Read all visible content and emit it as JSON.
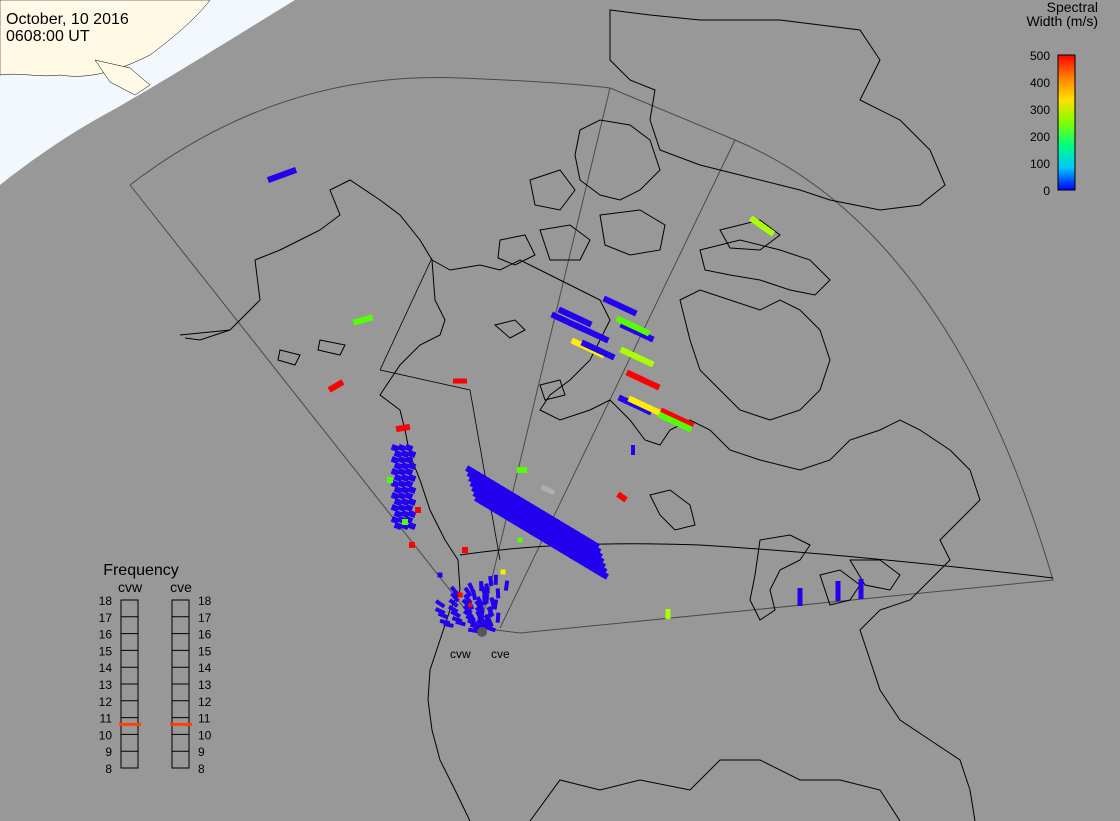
{
  "header": {
    "date": "October, 10 2016",
    "time": "0608:00 UT"
  },
  "colorbar": {
    "title_line1": "Spectral",
    "title_line2": "Width (m/s)",
    "ticks": [
      "0",
      "100",
      "200",
      "300",
      "400",
      "500"
    ],
    "colors": [
      "#0000ff",
      "#00c8ff",
      "#00ff80",
      "#80ff00",
      "#ffe000",
      "#ff8000",
      "#ff0000"
    ]
  },
  "frequency_panel": {
    "title": "Frequency",
    "left_label": "cvw",
    "right_label": "cve",
    "scale": [
      "18",
      "17",
      "16",
      "15",
      "14",
      "13",
      "12",
      "11",
      "10",
      "9",
      "8"
    ],
    "cvw_marker_mhz": 10.6,
    "cve_marker_mhz": 10.6,
    "marker_color": "#ff4000"
  },
  "radar_labels": {
    "west": "cvw",
    "east": "cve"
  },
  "map_colors": {
    "background": "#989898",
    "sunlit_region": "#f0f8ff",
    "coast": "#000000",
    "fov_outline": "#606060"
  }
}
